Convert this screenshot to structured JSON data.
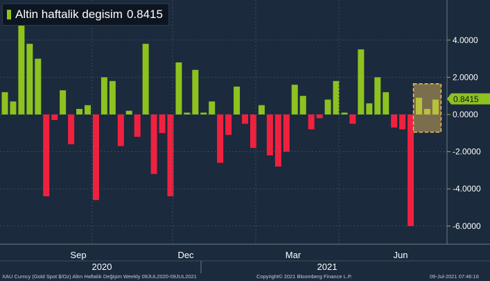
{
  "chart_data": {
    "type": "bar",
    "title": "Altin haftalik degisim",
    "last_value": "0.8415",
    "ylim": [
      -7,
      6
    ],
    "yticks": [
      -6,
      -4,
      -2,
      0,
      2,
      4
    ],
    "ytick_labels": [
      "-6.0000",
      "-4.0000",
      "-2.0000",
      "0.0000",
      "2.0000",
      "4.0000"
    ],
    "xaxis_months": [
      "Sep",
      "Dec",
      "Mar",
      "Jun"
    ],
    "xaxis_years": [
      "2020",
      "2021"
    ],
    "grid": true,
    "legend_position": "top-left",
    "colors": {
      "positive": "#8dc21f",
      "negative": "#f0213f",
      "background": "#1b2a3d",
      "highlight": "#f0c060"
    },
    "series": [
      {
        "values": [
          1.2,
          0.7,
          5.0,
          3.8,
          3.0,
          -4.4,
          -0.3,
          1.3,
          -1.6,
          0.3,
          0.5,
          -4.6,
          2.0,
          1.8,
          -1.7,
          0.2,
          -1.2,
          3.8,
          -3.2,
          -1.0,
          -4.4,
          2.8,
          0.1,
          2.4,
          0.1,
          0.7,
          -2.6,
          -1.1,
          1.5,
          -0.5,
          -1.8,
          0.5,
          -2.2,
          -2.8,
          -2.0,
          1.6,
          1.0,
          -0.8,
          -0.2,
          0.8,
          1.8,
          0.1,
          -0.5,
          3.5,
          0.6,
          2.0,
          1.2,
          -0.7,
          -0.8,
          -6.0,
          0.9,
          0.3,
          0.8
        ]
      }
    ]
  },
  "footer": {
    "left": "XAU Curncy (Gold Spot   $/Oz) Altın Haftalık Değişim  Weekly 09JUL2020-09JUL2021",
    "center": "Copyright© 2021 Bloomberg Finance L.P.",
    "right": "09-Jul-2021 07:46:16"
  }
}
